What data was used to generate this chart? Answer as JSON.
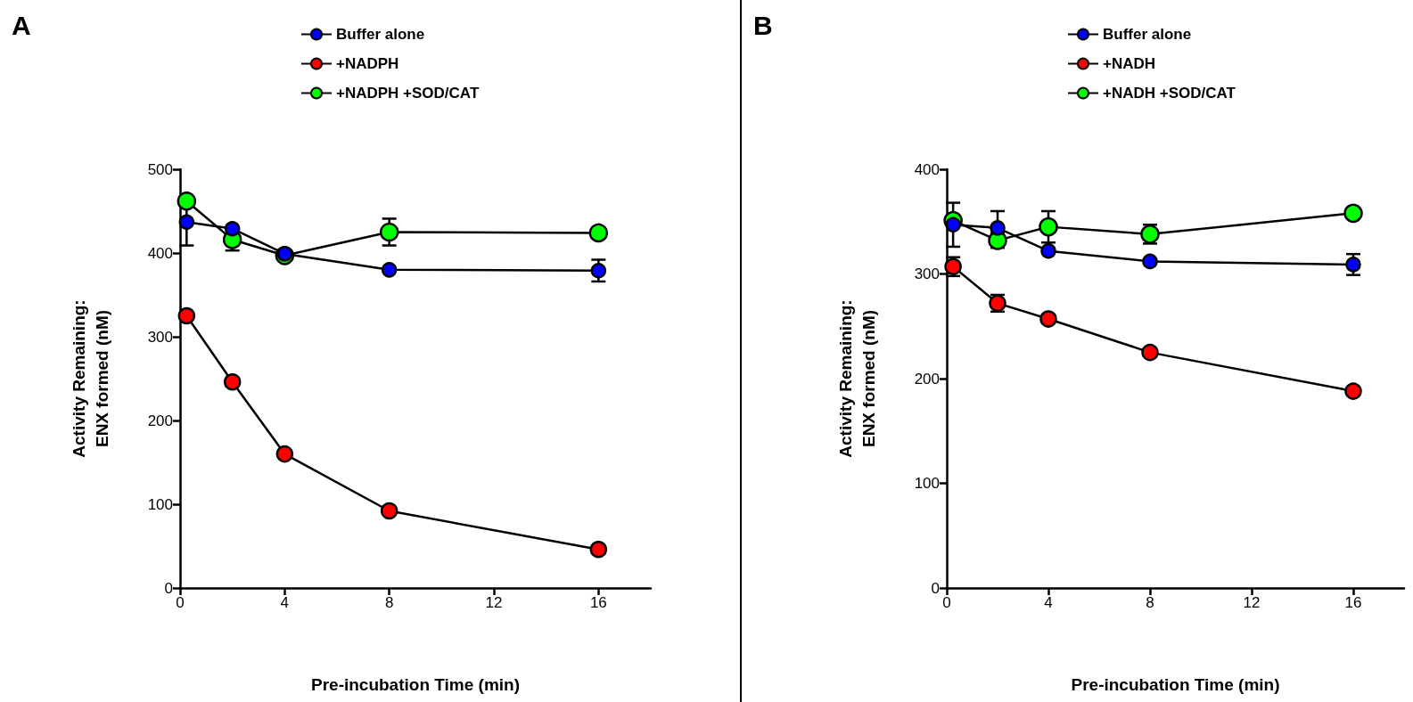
{
  "chart_data": [
    {
      "type": "line",
      "title": "A",
      "xlabel": "Pre-incubation Time (min)",
      "ylabel": "Activity Remaining:\nENX formed (nM)",
      "x": [
        0.25,
        2,
        4,
        8,
        16
      ],
      "xlim": [
        0,
        18
      ],
      "xticks": [
        0,
        4,
        8,
        12,
        16
      ],
      "ylim": [
        0,
        500
      ],
      "yticks": [
        0,
        100,
        200,
        300,
        400,
        500
      ],
      "grid": false,
      "legend": "top",
      "marker": "circle",
      "series": [
        {
          "name": "Buffer alone",
          "color": "#0000ff",
          "values": [
            437,
            429,
            399,
            380,
            379
          ],
          "errors": [
            28,
            null,
            null,
            null,
            13
          ]
        },
        {
          "name": "+NADPH",
          "color": "#ff0000",
          "values": [
            325,
            246,
            160,
            92,
            46
          ]
        },
        {
          "name": "+NADPH +SOD/CAT",
          "color": "#00ff00",
          "values": [
            462,
            416,
            397,
            425,
            424
          ],
          "errors": [
            null,
            13,
            null,
            16,
            null
          ]
        }
      ]
    },
    {
      "type": "line",
      "title": "B",
      "xlabel": "Pre-incubation Time (min)",
      "ylabel": "Activity Remaining:\nENX formed (nM)",
      "x": [
        0.25,
        2,
        4,
        8,
        16
      ],
      "xlim": [
        0,
        18
      ],
      "xticks": [
        0,
        4,
        8,
        12,
        16
      ],
      "ylim": [
        0,
        400
      ],
      "yticks": [
        0,
        100,
        200,
        300,
        400
      ],
      "grid": false,
      "legend": "top",
      "marker": "circle",
      "series": [
        {
          "name": "Buffer alone",
          "color": "#0000ff",
          "values": [
            347,
            344,
            322,
            312,
            309
          ],
          "errors": [
            21,
            16,
            null,
            null,
            10
          ]
        },
        {
          "name": "+NADH",
          "color": "#ff0000",
          "values": [
            307,
            272,
            257,
            225,
            188
          ],
          "errors": [
            9,
            8,
            null,
            null,
            null
          ]
        },
        {
          "name": "+NADH +SOD/CAT",
          "color": "#00ff00",
          "values": [
            351,
            332,
            345,
            338,
            358
          ],
          "errors": [
            null,
            7,
            15,
            9,
            null
          ]
        }
      ]
    }
  ]
}
